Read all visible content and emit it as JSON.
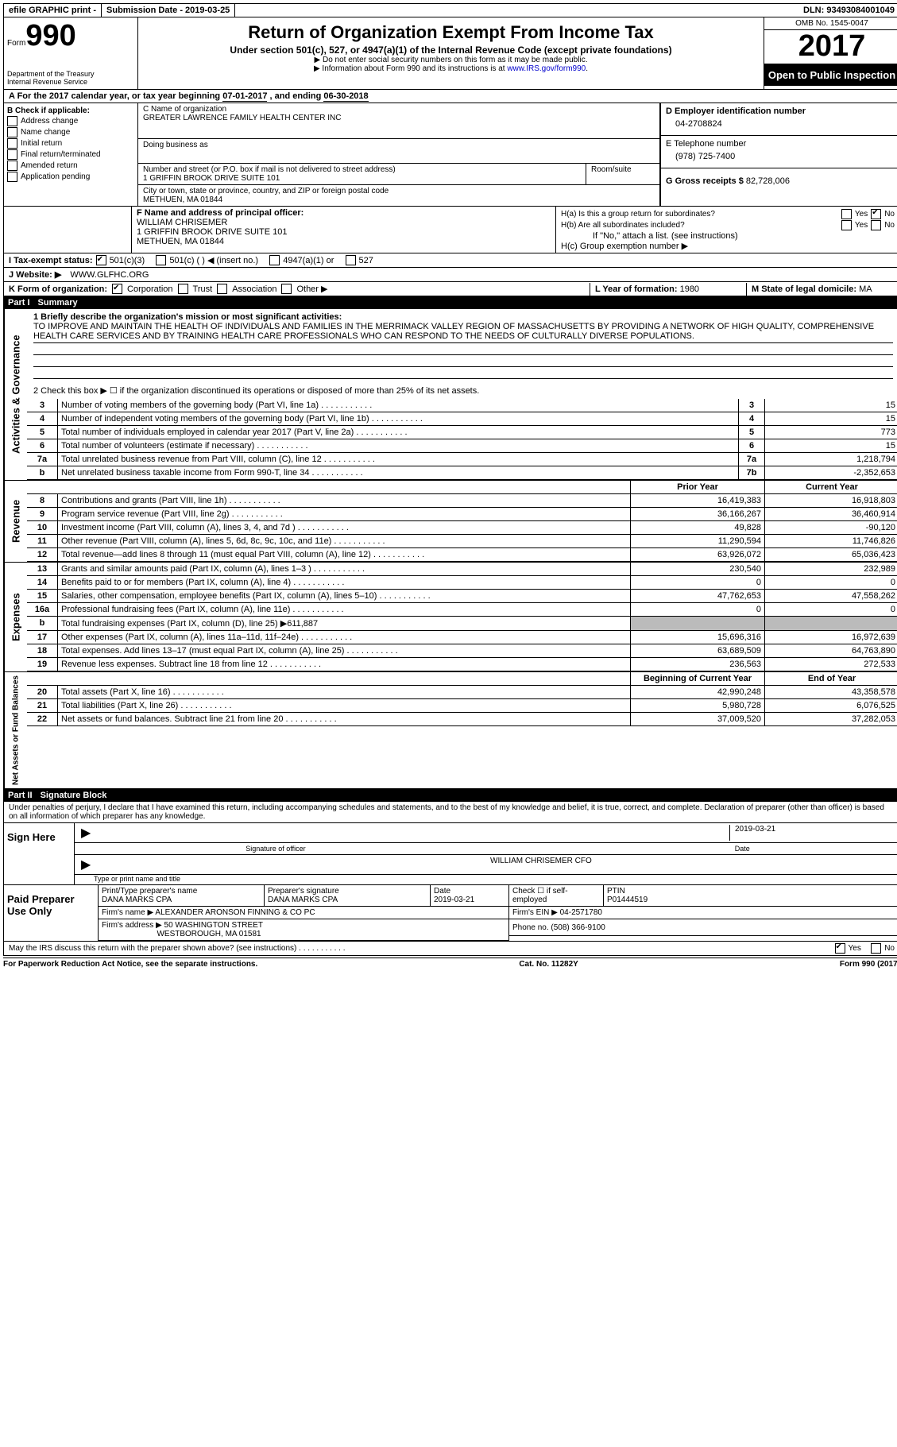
{
  "topbar": {
    "efile": "efile GRAPHIC print -",
    "submission": "Submission Date - 2019-03-25",
    "dln": "DLN: 93493084001049"
  },
  "header": {
    "form_prefix": "Form",
    "form_number": "990",
    "dept": "Department of the Treasury",
    "irs": "Internal Revenue Service",
    "title": "Return of Organization Exempt From Income Tax",
    "subtitle": "Under section 501(c), 527, or 4947(a)(1) of the Internal Revenue Code (except private foundations)",
    "note1": "▶ Do not enter social security numbers on this form as it may be made public.",
    "note2_pre": "▶ Information about Form 990 and its instructions is at ",
    "note2_link": "www.IRS.gov/form990",
    "omb": "OMB No. 1545-0047",
    "year": "2017",
    "open_public": "Open to Public Inspection"
  },
  "A": {
    "text_pre": "A  For the 2017 calendar year, or tax year beginning ",
    "begin": "07-01-2017",
    "mid": "   , and ending ",
    "end": "06-30-2018"
  },
  "B": {
    "label": "B Check if applicable:",
    "opts": [
      "Address change",
      "Name change",
      "Initial return",
      "Final return/terminated",
      "Amended return",
      "Application pending"
    ]
  },
  "C": {
    "name_label": "C Name of organization",
    "org_name": "GREATER LAWRENCE FAMILY HEALTH CENTER INC",
    "dba_label": "Doing business as",
    "street_label": "Number and street (or P.O. box if mail is not delivered to street address)",
    "room_label": "Room/suite",
    "street": "1 GRIFFIN BROOK DRIVE SUITE 101",
    "city_label": "City or town, state or province, country, and ZIP or foreign postal code",
    "city": "METHUEN, MA  01844"
  },
  "D": {
    "label": "D Employer identification number",
    "val": "04-2708824"
  },
  "E": {
    "label": "E Telephone number",
    "val": "(978) 725-7400"
  },
  "G": {
    "label": "G Gross receipts $",
    "val": "82,728,006"
  },
  "F": {
    "label": "F  Name and address of principal officer:",
    "name": "WILLIAM CHRISEMER",
    "addr1": "1 GRIFFIN BROOK DRIVE SUITE 101",
    "addr2": "METHUEN, MA  01844"
  },
  "H": {
    "a": "H(a)  Is this a group return for subordinates?",
    "b": "H(b)  Are all subordinates included?",
    "b_note": "If \"No,\" attach a list. (see instructions)",
    "c": "H(c)  Group exemption number ▶"
  },
  "I": {
    "label": "I  Tax-exempt status:",
    "o1": "501(c)(3)",
    "o2": "501(c) (  ) ◀ (insert no.)",
    "o3": "4947(a)(1) or",
    "o4": "527"
  },
  "J": {
    "label": "J  Website: ▶",
    "val": "WWW.GLFHC.ORG"
  },
  "K": {
    "label": "K Form of organization:",
    "o1": "Corporation",
    "o2": "Trust",
    "o3": "Association",
    "o4": "Other ▶"
  },
  "L": {
    "label": "L Year of formation:",
    "val": "1980"
  },
  "M": {
    "label": "M State of legal domicile:",
    "val": "MA"
  },
  "part1": {
    "label": "Part I",
    "title": "Summary"
  },
  "summary": {
    "q1": "1  Briefly describe the organization's mission or most significant activities:",
    "mission": "TO IMPROVE AND MAINTAIN THE HEALTH OF INDIVIDUALS AND FAMILIES IN THE MERRIMACK VALLEY REGION OF MASSACHUSETTS BY PROVIDING A NETWORK OF HIGH QUALITY, COMPREHENSIVE HEALTH CARE SERVICES AND BY TRAINING HEALTH CARE PROFESSIONALS WHO CAN RESPOND TO THE NEEDS OF CULTURALLY DIVERSE POPULATIONS.",
    "q2": "2  Check this box ▶ ☐  if the organization discontinued its operations or disposed of more than 25% of its net assets.",
    "lines_single": [
      {
        "n": "3",
        "t": "Number of voting members of the governing body (Part VI, line 1a)",
        "box": "3",
        "v": "15"
      },
      {
        "n": "4",
        "t": "Number of independent voting members of the governing body (Part VI, line 1b)",
        "box": "4",
        "v": "15"
      },
      {
        "n": "5",
        "t": "Total number of individuals employed in calendar year 2017 (Part V, line 2a)",
        "box": "5",
        "v": "773"
      },
      {
        "n": "6",
        "t": "Total number of volunteers (estimate if necessary)",
        "box": "6",
        "v": "15"
      },
      {
        "n": "7a",
        "t": "Total unrelated business revenue from Part VIII, column (C), line 12",
        "box": "7a",
        "v": "1,218,794"
      },
      {
        "n": "b",
        "t": "Net unrelated business taxable income from Form 990-T, line 34",
        "box": "7b",
        "v": "-2,352,653"
      }
    ],
    "col_prior": "Prior Year",
    "col_current": "Current Year",
    "revenue": [
      {
        "n": "8",
        "t": "Contributions and grants (Part VIII, line 1h)",
        "p": "16,419,383",
        "c": "16,918,803"
      },
      {
        "n": "9",
        "t": "Program service revenue (Part VIII, line 2g)",
        "p": "36,166,267",
        "c": "36,460,914"
      },
      {
        "n": "10",
        "t": "Investment income (Part VIII, column (A), lines 3, 4, and 7d )",
        "p": "49,828",
        "c": "-90,120"
      },
      {
        "n": "11",
        "t": "Other revenue (Part VIII, column (A), lines 5, 6d, 8c, 9c, 10c, and 11e)",
        "p": "11,290,594",
        "c": "11,746,826"
      },
      {
        "n": "12",
        "t": "Total revenue—add lines 8 through 11 (must equal Part VIII, column (A), line 12)",
        "p": "63,926,072",
        "c": "65,036,423"
      }
    ],
    "expenses": [
      {
        "n": "13",
        "t": "Grants and similar amounts paid (Part IX, column (A), lines 1–3 )",
        "p": "230,540",
        "c": "232,989"
      },
      {
        "n": "14",
        "t": "Benefits paid to or for members (Part IX, column (A), line 4)",
        "p": "0",
        "c": "0"
      },
      {
        "n": "15",
        "t": "Salaries, other compensation, employee benefits (Part IX, column (A), lines 5–10)",
        "p": "47,762,653",
        "c": "47,558,262"
      },
      {
        "n": "16a",
        "t": "Professional fundraising fees (Part IX, column (A), line 11e)",
        "p": "0",
        "c": "0"
      },
      {
        "n": "b",
        "t": "Total fundraising expenses (Part IX, column (D), line 25) ▶611,887",
        "p": "",
        "c": "",
        "shaded": true
      },
      {
        "n": "17",
        "t": "Other expenses (Part IX, column (A), lines 11a–11d, 11f–24e)",
        "p": "15,696,316",
        "c": "16,972,639"
      },
      {
        "n": "18",
        "t": "Total expenses. Add lines 13–17 (must equal Part IX, column (A), line 25)",
        "p": "63,689,509",
        "c": "64,763,890"
      },
      {
        "n": "19",
        "t": "Revenue less expenses. Subtract line 18 from line 12",
        "p": "236,563",
        "c": "272,533"
      }
    ],
    "col_begin": "Beginning of Current Year",
    "col_end": "End of Year",
    "netassets": [
      {
        "n": "20",
        "t": "Total assets (Part X, line 16)",
        "p": "42,990,248",
        "c": "43,358,578"
      },
      {
        "n": "21",
        "t": "Total liabilities (Part X, line 26)",
        "p": "5,980,728",
        "c": "6,076,525"
      },
      {
        "n": "22",
        "t": "Net assets or fund balances. Subtract line 21 from line 20",
        "p": "37,009,520",
        "c": "37,282,053"
      }
    ]
  },
  "vlabels": {
    "gov": "Activities & Governance",
    "rev": "Revenue",
    "exp": "Expenses",
    "net": "Net Assets or Fund Balances"
  },
  "part2": {
    "label": "Part II",
    "title": "Signature Block"
  },
  "sig": {
    "perjury": "Under penalties of perjury, I declare that I have examined this return, including accompanying schedules and statements, and to the best of my knowledge and belief, it is true, correct, and complete. Declaration of preparer (other than officer) is based on all information of which preparer has any knowledge.",
    "sign_here": "Sign Here",
    "sig_officer": "Signature of officer",
    "date_label": "Date",
    "sig_date": "2019-03-21",
    "officer_name": "WILLIAM CHRISEMER CFO",
    "type_name": "Type or print name and title",
    "paid": "Paid Preparer Use Only",
    "prep_name_label": "Print/Type preparer's name",
    "prep_name": "DANA MARKS CPA",
    "prep_sig_label": "Preparer's signature",
    "prep_sig": "DANA MARKS CPA",
    "prep_date_label": "Date",
    "prep_date": "2019-03-21",
    "self_emp": "Check ☐ if self-employed",
    "ptin_label": "PTIN",
    "ptin": "P01444519",
    "firm_name_label": "Firm's name      ▶",
    "firm_name": "ALEXANDER ARONSON FINNING & CO PC",
    "firm_ein_label": "Firm's EIN ▶",
    "firm_ein": "04-2571780",
    "firm_addr_label": "Firm's address ▶",
    "firm_addr1": "50 WASHINGTON STREET",
    "firm_addr2": "WESTBOROUGH, MA  01581",
    "phone_label": "Phone no.",
    "phone": "(508) 366-9100",
    "discuss": "May the IRS discuss this return with the preparer shown above? (see instructions)"
  },
  "footer": {
    "paperwork": "For Paperwork Reduction Act Notice, see the separate instructions.",
    "cat": "Cat. No. 11282Y",
    "form": "Form 990 (2017)"
  }
}
